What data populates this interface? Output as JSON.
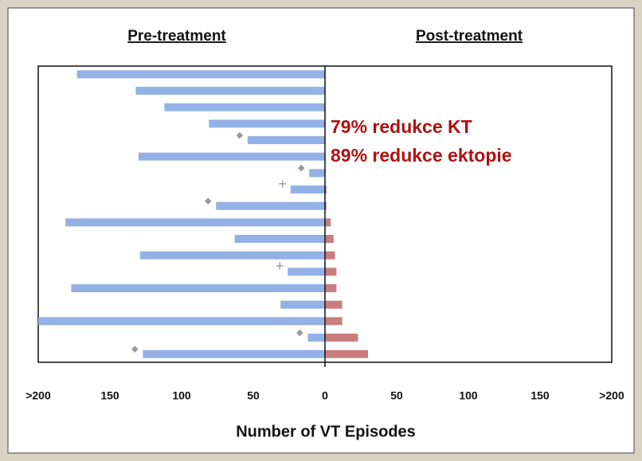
{
  "chart_data": {
    "type": "butterfly_bar",
    "left_header": "Pre-treatment",
    "right_header": "Post-treatment",
    "xlabel": "Number of VT Episodes",
    "annotations": [
      "79% redukce KT",
      "89% redukce ektopie"
    ],
    "annotation_color": "#b01010",
    "xlim": [
      -200,
      200
    ],
    "xticks": [
      {
        "value": -200,
        "label": ">200"
      },
      {
        "value": -150,
        "label": "150"
      },
      {
        "value": -100,
        "label": "100"
      },
      {
        "value": -50,
        "label": "50"
      },
      0,
      50,
      100,
      150,
      {
        "value": 200,
        "label": ">200"
      }
    ],
    "series": [
      {
        "name": "Pre-treatment",
        "color": "#93b1e6",
        "values": [
          -173,
          -132,
          -112,
          -81,
          -54,
          -130,
          -11,
          -24,
          -76,
          -181,
          -63,
          -129,
          -26,
          -177,
          -31,
          -200,
          -12,
          -127
        ]
      },
      {
        "name": "Post-treatment",
        "color": "#c97d7d",
        "values": [
          0,
          0,
          0,
          0,
          0,
          0,
          0,
          1,
          1,
          4,
          6,
          7,
          8,
          8,
          12,
          12,
          23,
          30
        ]
      }
    ],
    "markers": [
      null,
      null,
      null,
      null,
      "◆",
      null,
      "◆",
      "+",
      "◆",
      null,
      null,
      null,
      "+",
      null,
      null,
      null,
      "◆",
      "◆"
    ]
  }
}
